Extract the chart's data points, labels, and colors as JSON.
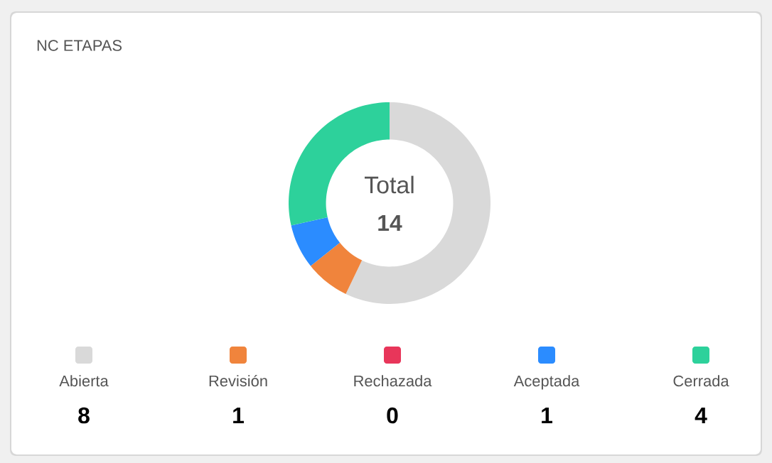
{
  "chart_data": {
    "type": "donut",
    "title": "NC ETAPAS",
    "categories": [
      "Abierta",
      "Revisión",
      "Rechazada",
      "Aceptada",
      "Cerrada"
    ],
    "values": [
      8,
      1,
      0,
      1,
      4
    ],
    "colors": [
      "#d9d9d9",
      "#f0843c",
      "#e8365a",
      "#2b8cff",
      "#2dd19b"
    ],
    "annotations": [
      "Total",
      "14"
    ],
    "value_labels": [
      "8",
      "1",
      "0",
      "1",
      "4"
    ],
    "legend": "bottom"
  }
}
